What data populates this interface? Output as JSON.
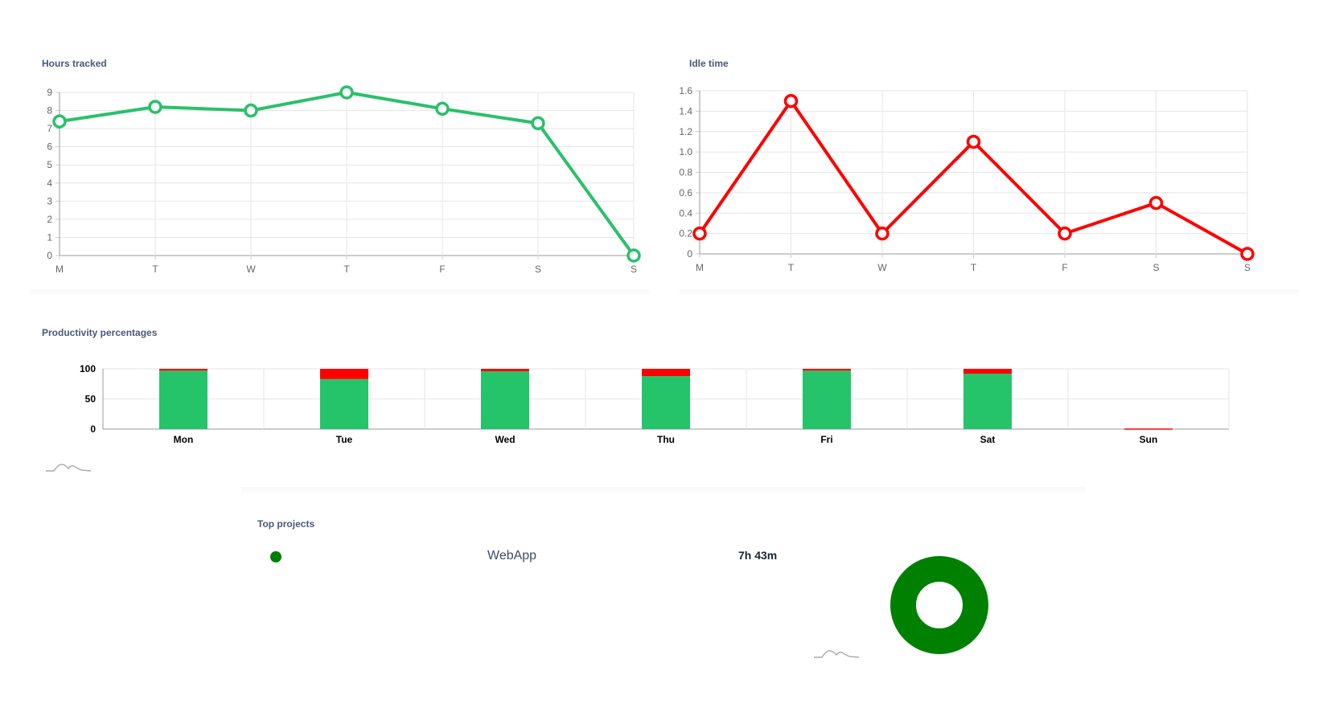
{
  "colors": {
    "hours_line": "#2ac06b",
    "idle_line": "#ff0000",
    "productive": "#25c46a",
    "unproductive": "#ff0000",
    "project": "#008000"
  },
  "hours_tracked": {
    "title": "Hours tracked",
    "chart_data": {
      "type": "line",
      "categories": [
        "M",
        "T",
        "W",
        "T",
        "F",
        "S",
        "S"
      ],
      "series": [
        {
          "values": [
            7.4,
            8.2,
            8.0,
            9.0,
            8.1,
            7.3,
            0
          ]
        }
      ],
      "yticks": [
        "0",
        "1",
        "2",
        "3",
        "4",
        "5",
        "6",
        "7",
        "8",
        "9"
      ],
      "ylim": [
        0,
        9
      ],
      "grid": true
    }
  },
  "idle_time": {
    "title": "Idle time",
    "chart_data": {
      "type": "line",
      "categories": [
        "M",
        "T",
        "W",
        "T",
        "F",
        "S",
        "S"
      ],
      "series": [
        {
          "values": [
            0.2,
            1.5,
            0.2,
            1.1,
            0.2,
            0.5,
            0
          ]
        }
      ],
      "yticks": [
        "0",
        "0.2",
        "0.4",
        "0.6",
        "0.8",
        "1.0",
        "1.2",
        "1.4",
        "1.6"
      ],
      "ylim": [
        0,
        1.6
      ],
      "grid": true
    }
  },
  "productivity": {
    "title": "Productivity percentages",
    "chart_data": {
      "type": "bar",
      "stacked": true,
      "categories": [
        "Mon",
        "Tue",
        "Wed",
        "Thu",
        "Fri",
        "Sat",
        "Sun"
      ],
      "series": [
        {
          "values": [
            97,
            83,
            96,
            88,
            97,
            92,
            0
          ]
        },
        {
          "values": [
            3,
            17,
            4,
            12,
            3,
            8,
            1
          ]
        }
      ],
      "yticks": [
        "0",
        "50",
        "100"
      ],
      "ylim": [
        0,
        100
      ],
      "grid": true
    }
  },
  "top_projects": {
    "title": "Top projects",
    "items": [
      {
        "name": "WebApp",
        "time": "7h 43m"
      }
    ],
    "chart_data": {
      "type": "pie",
      "donut": true,
      "categories": [
        "WebApp"
      ],
      "values": [
        100
      ]
    }
  }
}
